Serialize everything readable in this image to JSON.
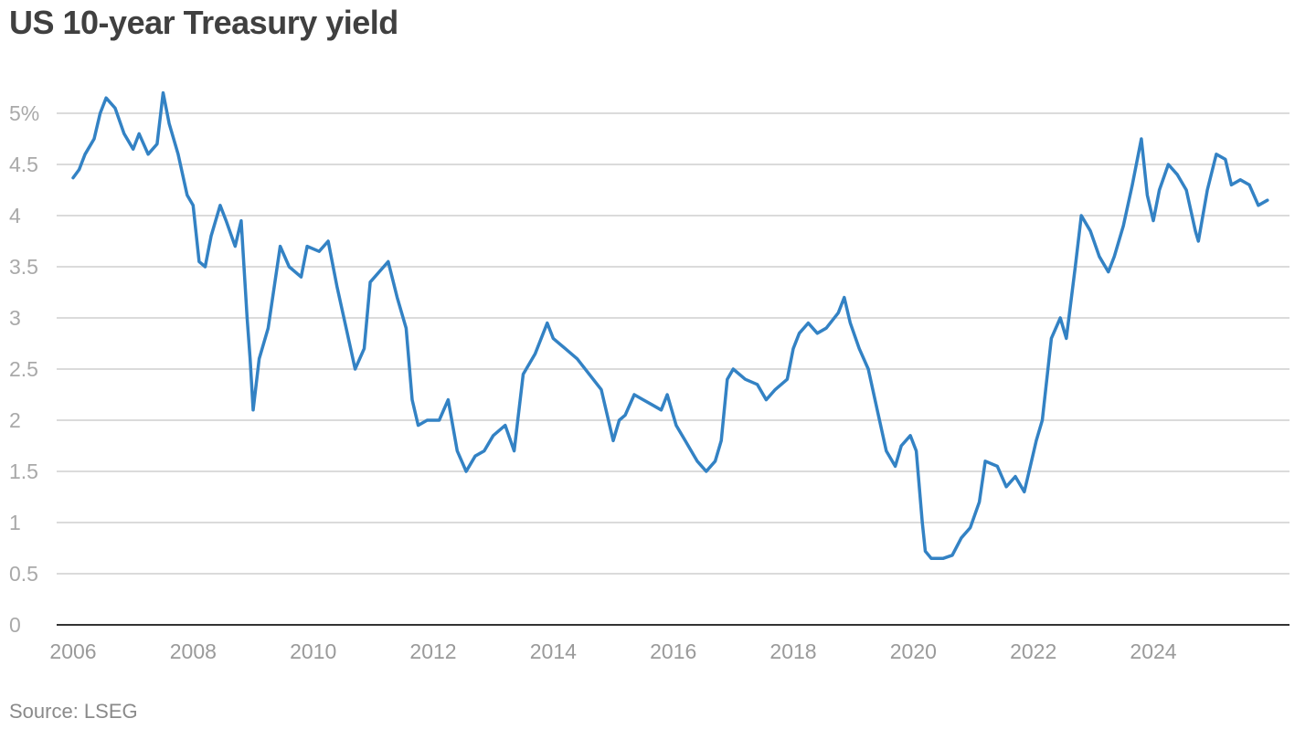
{
  "chart_data": {
    "type": "line",
    "title": "US 10-year Treasury yield",
    "source": "Source: LSEG",
    "xlabel": "",
    "ylabel": "",
    "xlim": [
      2006.0,
      2026.4
    ],
    "ylim": [
      0,
      5.5
    ],
    "y_ticks": [
      0,
      0.5,
      1,
      1.5,
      2,
      2.5,
      3,
      3.5,
      4,
      4.5,
      5
    ],
    "y_tick_labels": [
      "0",
      "0.5",
      "1",
      "1.5",
      "2",
      "2.5",
      "3",
      "3.5",
      "4",
      "4.5",
      "5%"
    ],
    "x_ticks": [
      2006,
      2008,
      2010,
      2012,
      2014,
      2016,
      2018,
      2020,
      2022,
      2024
    ],
    "x_tick_labels": [
      "2006",
      "2008",
      "2010",
      "2012",
      "2014",
      "2016",
      "2018",
      "2020",
      "2022",
      "2024"
    ],
    "grid": true,
    "legend": "none",
    "colors": {
      "line": "#3382c4",
      "grid": "#cfcfcf",
      "axis": "#333333"
    },
    "series": [
      {
        "x": [
          2006.0,
          2006.1,
          2006.2,
          2006.35,
          2006.45,
          2006.55,
          2006.7,
          2006.85,
          2007.0,
          2007.1,
          2007.25,
          2007.4,
          2007.5,
          2007.6,
          2007.75,
          2007.9,
          2008.0,
          2008.1,
          2008.2,
          2008.3,
          2008.45,
          2008.55,
          2008.7,
          2008.8,
          2008.9,
          2008.95,
          2009.0,
          2009.1,
          2009.25,
          2009.45,
          2009.6,
          2009.8,
          2009.9,
          2010.1,
          2010.25,
          2010.4,
          2010.55,
          2010.7,
          2010.85,
          2010.95,
          2011.1,
          2011.25,
          2011.4,
          2011.55,
          2011.65,
          2011.75,
          2011.9,
          2012.1,
          2012.25,
          2012.4,
          2012.55,
          2012.7,
          2012.85,
          2013.0,
          2013.2,
          2013.35,
          2013.5,
          2013.7,
          2013.9,
          2014.0,
          2014.2,
          2014.4,
          2014.6,
          2014.8,
          2015.0,
          2015.1,
          2015.2,
          2015.35,
          2015.5,
          2015.65,
          2015.8,
          2015.9,
          2016.05,
          2016.2,
          2016.4,
          2016.55,
          2016.7,
          2016.8,
          2016.9,
          2017.0,
          2017.2,
          2017.4,
          2017.55,
          2017.7,
          2017.9,
          2018.0,
          2018.1,
          2018.25,
          2018.4,
          2018.55,
          2018.75,
          2018.85,
          2018.95,
          2019.1,
          2019.25,
          2019.4,
          2019.55,
          2019.7,
          2019.8,
          2019.95,
          2020.05,
          2020.15,
          2020.2,
          2020.3,
          2020.5,
          2020.65,
          2020.8,
          2020.95,
          2021.1,
          2021.2,
          2021.4,
          2021.55,
          2021.7,
          2021.85,
          2021.95,
          2022.05,
          2022.15,
          2022.3,
          2022.45,
          2022.55,
          2022.7,
          2022.8,
          2022.95,
          2023.1,
          2023.25,
          2023.35,
          2023.5,
          2023.65,
          2023.8,
          2023.9,
          2024.0,
          2024.1,
          2024.25,
          2024.4,
          2024.55,
          2024.7,
          2024.75,
          2024.9,
          2025.05,
          2025.2,
          2025.3,
          2025.45,
          2025.6,
          2025.75,
          2025.9
        ],
        "values": [
          4.37,
          4.45,
          4.6,
          4.75,
          5.0,
          5.15,
          5.05,
          4.8,
          4.65,
          4.8,
          4.6,
          4.7,
          5.2,
          4.9,
          4.6,
          4.2,
          4.1,
          3.55,
          3.5,
          3.8,
          4.1,
          3.95,
          3.7,
          3.95,
          3.0,
          2.6,
          2.1,
          2.6,
          2.9,
          3.7,
          3.5,
          3.4,
          3.7,
          3.65,
          3.75,
          3.3,
          2.9,
          2.5,
          2.7,
          3.35,
          3.45,
          3.55,
          3.2,
          2.9,
          2.2,
          1.95,
          2.0,
          2.0,
          2.2,
          1.7,
          1.5,
          1.65,
          1.7,
          1.85,
          1.95,
          1.7,
          2.45,
          2.65,
          2.95,
          2.8,
          2.7,
          2.6,
          2.45,
          2.3,
          1.8,
          2.0,
          2.05,
          2.25,
          2.2,
          2.15,
          2.1,
          2.25,
          1.95,
          1.8,
          1.6,
          1.5,
          1.6,
          1.8,
          2.4,
          2.5,
          2.4,
          2.35,
          2.2,
          2.3,
          2.4,
          2.7,
          2.85,
          2.95,
          2.85,
          2.9,
          3.05,
          3.2,
          2.95,
          2.7,
          2.5,
          2.1,
          1.7,
          1.55,
          1.75,
          1.85,
          1.7,
          1.0,
          0.72,
          0.65,
          0.65,
          0.68,
          0.85,
          0.95,
          1.2,
          1.6,
          1.55,
          1.35,
          1.45,
          1.3,
          1.55,
          1.8,
          2.0,
          2.8,
          3.0,
          2.8,
          3.5,
          4.0,
          3.85,
          3.6,
          3.45,
          3.6,
          3.9,
          4.3,
          4.75,
          4.2,
          3.95,
          4.25,
          4.5,
          4.4,
          4.25,
          3.85,
          3.75,
          4.25,
          4.6,
          4.55,
          4.3,
          4.35,
          4.3,
          4.1,
          4.15
        ]
      }
    ]
  }
}
